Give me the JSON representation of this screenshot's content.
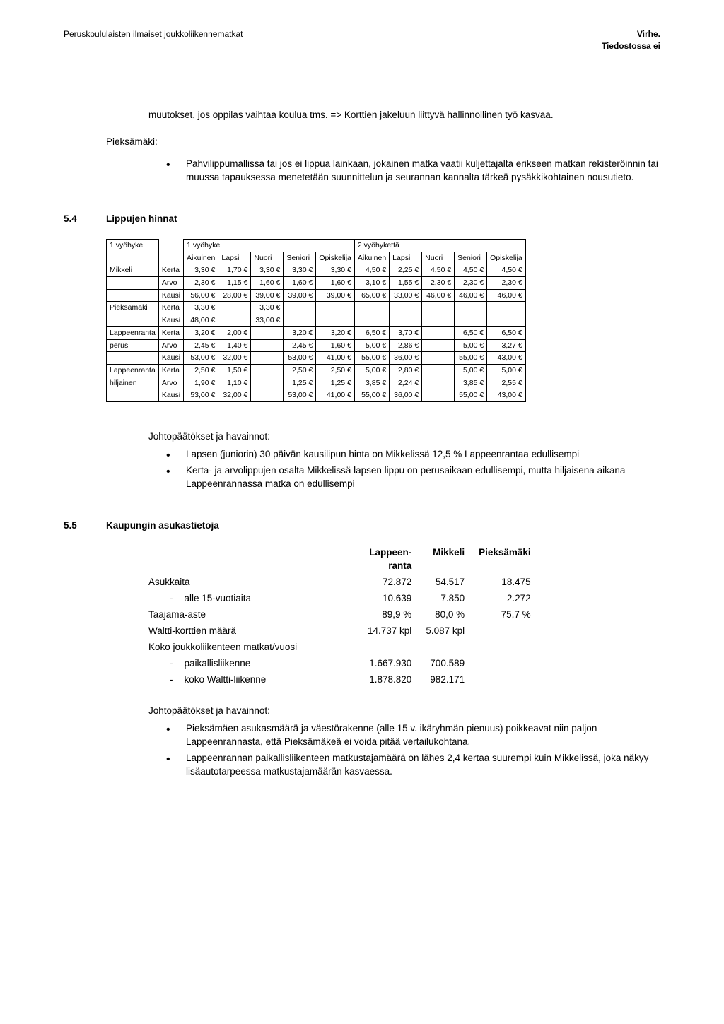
{
  "header": {
    "left": "Peruskoululaisten ilmaiset joukkoliikennematkat",
    "right_line1": "Virhe.",
    "right_line2": "Tiedostossa ei"
  },
  "intro_para": "muutokset, jos oppilas vaihtaa koulua tms. => Korttien jakeluun liittyvä hallinnollinen työ kasvaa.",
  "pieksamaki_label": "Pieksämäki:",
  "pieksamaki_bullet": "Pahvilippumallissa tai jos ei lippua lainkaan, jokainen matka vaatii kuljettajalta erikseen matkan rekisteröinnin tai muussa tapauksessa menetetään suunnittelun ja seurannan kannalta tärkeä pysäkkikohtainen nousutieto.",
  "section_5_4": {
    "num": "5.4",
    "title": "Lippujen hinnat"
  },
  "price_table": {
    "zone1_label": "1 vyöhyke",
    "zone2_label": "2 vyöhykettä",
    "col1_label": "1 vyöhyke",
    "col_headers": [
      "Aikuinen",
      "Lapsi",
      "Nuori",
      "Seniori",
      "Opiskelija",
      "Aikuinen",
      "Lapsi",
      "Nuori",
      "Seniori",
      "Opiskelija"
    ],
    "rows": [
      {
        "city": "Mikkeli",
        "type": "Kerta",
        "v": [
          "3,30 €",
          "1,70 €",
          "3,30 €",
          "3,30 €",
          "3,30 €",
          "4,50 €",
          "2,25 €",
          "4,50 €",
          "4,50 €",
          "4,50 €"
        ]
      },
      {
        "city": "",
        "type": "Arvo",
        "v": [
          "2,30 €",
          "1,15 €",
          "1,60 €",
          "1,60 €",
          "1,60 €",
          "3,10 €",
          "1,55 €",
          "2,30 €",
          "2,30 €",
          "2,30 €"
        ]
      },
      {
        "city": "",
        "type": "Kausi",
        "v": [
          "56,00 €",
          "28,00 €",
          "39,00 €",
          "39,00 €",
          "39,00 €",
          "65,00 €",
          "33,00 €",
          "46,00 €",
          "46,00 €",
          "46,00 €"
        ]
      },
      {
        "city": "Pieksämäki",
        "type": "Kerta",
        "v": [
          "3,30 €",
          "",
          "3,30 €",
          "",
          "",
          "",
          "",
          "",
          "",
          ""
        ]
      },
      {
        "city": "",
        "type": "Kausi",
        "v": [
          "48,00 €",
          "",
          "33,00 €",
          "",
          "",
          "",
          "",
          "",
          "",
          ""
        ]
      },
      {
        "city": "Lappeenranta",
        "type": "Kerta",
        "v": [
          "3,20 €",
          "2,00 €",
          "",
          "3,20 €",
          "3,20 €",
          "6,50 €",
          "3,70 €",
          "",
          "6,50 €",
          "6,50 €"
        ]
      },
      {
        "city": "perus",
        "type": "Arvo",
        "v": [
          "2,45 €",
          "1,40 €",
          "",
          "2,45 €",
          "1,60 €",
          "5,00 €",
          "2,86 €",
          "",
          "5,00 €",
          "3,27 €"
        ]
      },
      {
        "city": "",
        "type": "Kausi",
        "v": [
          "53,00 €",
          "32,00 €",
          "",
          "53,00 €",
          "41,00 €",
          "55,00 €",
          "36,00 €",
          "",
          "55,00 €",
          "43,00 €"
        ]
      },
      {
        "city": "Lappeenranta",
        "type": "Kerta",
        "v": [
          "2,50 €",
          "1,50 €",
          "",
          "2,50 €",
          "2,50 €",
          "5,00 €",
          "2,80 €",
          "",
          "5,00 €",
          "5,00 €"
        ]
      },
      {
        "city": "hiljainen",
        "type": "Arvo",
        "v": [
          "1,90 €",
          "1,10 €",
          "",
          "1,25 €",
          "1,25 €",
          "3,85 €",
          "2,24 €",
          "",
          "3,85 €",
          "2,55 €"
        ]
      },
      {
        "city": "",
        "type": "Kausi",
        "v": [
          "53,00 €",
          "32,00 €",
          "",
          "53,00 €",
          "41,00 €",
          "55,00 €",
          "36,00 €",
          "",
          "55,00 €",
          "43,00 €"
        ]
      }
    ]
  },
  "conclusions_5_4_title": "Johtopäätökset ja havainnot:",
  "conclusions_5_4": [
    "Lapsen (juniorin) 30 päivän kausilipun hinta on Mikkelissä 12,5 % Lappeenrantaa edullisempi",
    "Kerta- ja arvolippujen osalta Mikkelissä lapsen lippu on perusaikaan edullisempi, mutta hiljaisena aikana Lappeenrannassa matka on edullisempi"
  ],
  "section_5_5": {
    "num": "5.5",
    "title": "Kaupungin asukastietoja"
  },
  "stats": {
    "headers": [
      "",
      "Lappeen-\nranta",
      "Mikkeli",
      "Pieksämäki"
    ],
    "rows": [
      {
        "label": "Asukkaita",
        "indent": 0,
        "v": [
          "72.872",
          "54.517",
          "18.475"
        ]
      },
      {
        "label": "alle 15-vuotiaita",
        "indent": 1,
        "v": [
          "10.639",
          "7.850",
          "2.272"
        ]
      },
      {
        "label": "Taajama-aste",
        "indent": 0,
        "v": [
          "89,9 %",
          "80,0 %",
          "75,7 %"
        ]
      },
      {
        "label": "Waltti-korttien määrä",
        "indent": 0,
        "v": [
          "14.737 kpl",
          "5.087 kpl",
          ""
        ]
      },
      {
        "label": "Koko joukkoliikenteen matkat/vuosi",
        "indent": 0,
        "v": [
          "",
          "",
          ""
        ]
      },
      {
        "label": "paikallisliikenne",
        "indent": 1,
        "v": [
          "1.667.930",
          "700.589",
          ""
        ]
      },
      {
        "label": "koko Waltti-liikenne",
        "indent": 1,
        "v": [
          "1.878.820",
          "982.171",
          ""
        ]
      }
    ]
  },
  "conclusions_5_5_title": "Johtopäätökset ja havainnot:",
  "conclusions_5_5": [
    "Pieksämäen asukasmäärä ja väestörakenne (alle 15 v. ikäryhmän pienuus) poikkeavat niin paljon Lappeenrannasta, että Pieksämäkeä ei voida pitää vertailukohtana.",
    "Lappeenrannan paikallisliikenteen matkustajamäärä on lähes 2,4 kertaa suurempi kuin Mikkelissä, joka näkyy lisäautotarpeessa matkustajamäärän kasvaessa."
  ]
}
